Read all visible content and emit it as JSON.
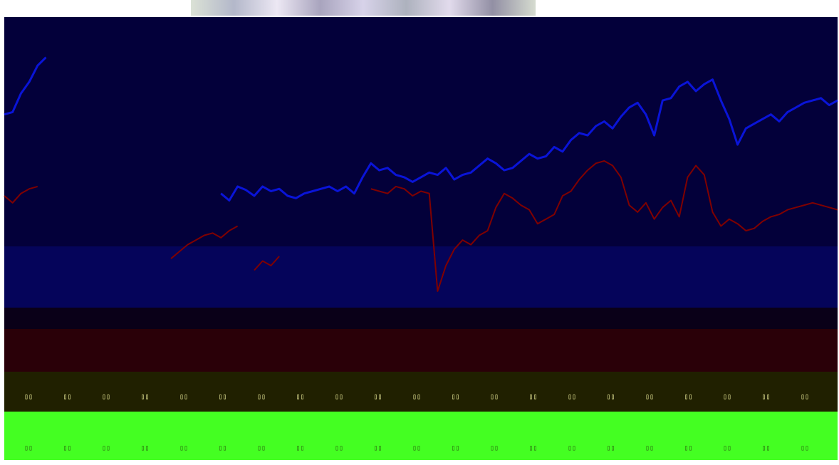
{
  "page": {
    "title": "",
    "colors": {
      "plot_bg": "#03003a",
      "band_blue": "#05045a",
      "band_dark": "#0a0018",
      "band_maroon": "#2a0008",
      "band_olive": "#202000",
      "band_green": "#44ff22",
      "tick_text_yellow": "#f4f4a0",
      "tick_text_green": "#2a6a10"
    }
  },
  "chart_data": {
    "type": "line",
    "title": "",
    "xlabel": "",
    "ylabel": "",
    "grid": false,
    "legend": "none",
    "xlim": [
      0,
      100
    ],
    "ylim": [
      -160,
      140
    ],
    "x": [
      0,
      1,
      2,
      3,
      4,
      5,
      6,
      7,
      8,
      9,
      10,
      11,
      12,
      13,
      14,
      15,
      16,
      17,
      18,
      19,
      20,
      21,
      22,
      23,
      24,
      25,
      26,
      27,
      28,
      29,
      30,
      31,
      32,
      33,
      34,
      35,
      36,
      37,
      38,
      39,
      40,
      41,
      42,
      43,
      44,
      45,
      46,
      47,
      48,
      49,
      50,
      51,
      52,
      53,
      54,
      55,
      56,
      57,
      58,
      59,
      60,
      61,
      62,
      63,
      64,
      65,
      66,
      67,
      68,
      69,
      70,
      71,
      72,
      73,
      74,
      75,
      76,
      77,
      78,
      79,
      80,
      81,
      82,
      83,
      84,
      85,
      86,
      87,
      88,
      89,
      90,
      91,
      92,
      93,
      94,
      95,
      96,
      97,
      98,
      99,
      100
    ],
    "series": [
      {
        "color": "#0a14d8",
        "values": [
          60,
          62,
          78,
          88,
          102,
          109,
          null,
          null,
          null,
          null,
          null,
          null,
          null,
          null,
          null,
          null,
          null,
          null,
          null,
          null,
          null,
          null,
          null,
          null,
          null,
          null,
          -8,
          -14,
          -2,
          -5,
          -10,
          -2,
          -6,
          -4,
          -10,
          -12,
          -8,
          -6,
          -4,
          -2,
          -6,
          -2,
          -8,
          6,
          18,
          12,
          14,
          8,
          6,
          2,
          6,
          10,
          8,
          14,
          4,
          8,
          10,
          16,
          22,
          18,
          12,
          14,
          20,
          26,
          22,
          24,
          32,
          28,
          38,
          44,
          42,
          50,
          54,
          48,
          58,
          66,
          70,
          60,
          42,
          72,
          74,
          84,
          88,
          80,
          86,
          90,
          72,
          56,
          34,
          48,
          52,
          56,
          60,
          54,
          62,
          66,
          70,
          72,
          74,
          68,
          72
        ]
      },
      {
        "color": "#800000",
        "values": [
          -10,
          -16,
          -8,
          -4,
          -2,
          null,
          null,
          null,
          null,
          null,
          null,
          null,
          null,
          null,
          null,
          null,
          null,
          null,
          null,
          null,
          -64,
          -58,
          -52,
          -48,
          -44,
          -42,
          -46,
          -40,
          -36,
          null,
          -74,
          -66,
          -70,
          -62,
          null,
          null,
          null,
          null,
          null,
          null,
          null,
          null,
          null,
          null,
          -4,
          -6,
          -8,
          -2,
          -4,
          -10,
          -6,
          -8,
          -92,
          -70,
          -56,
          -48,
          -52,
          -44,
          -40,
          -20,
          -8,
          -12,
          -18,
          -22,
          -34,
          -30,
          -26,
          -10,
          -6,
          4,
          12,
          18,
          20,
          16,
          6,
          -18,
          -24,
          -16,
          -30,
          -20,
          -14,
          -28,
          6,
          16,
          8,
          -24,
          -36,
          -30,
          -34,
          -40,
          -38,
          -32,
          -28,
          -26,
          -22,
          -20,
          -18,
          -16,
          -18,
          -20,
          -22
        ]
      }
    ]
  },
  "ticks": {
    "upper_row": [
      "▯▯",
      "▯▯",
      "▯▯",
      "▯▯",
      "▯▯",
      "▯▯",
      "▯▯",
      "▯▯",
      "▯▯",
      "▯▯",
      "▯▯",
      "▯▯",
      "▯▯",
      "▯▯",
      "▯▯",
      "▯▯",
      "▯▯",
      "▯▯",
      "▯▯",
      "▯▯",
      "▯▯"
    ],
    "lower_row": [
      "▯▯",
      "▯▯",
      "▯▯",
      "▯▯",
      "▯▯",
      "▯▯",
      "▯▯",
      "▯▯",
      "▯▯",
      "▯▯",
      "▯▯",
      "▯▯",
      "▯▯",
      "▯▯",
      "▯▯",
      "▯▯",
      "▯▯",
      "▯▯",
      "▯▯",
      "▯▯",
      "▯▯"
    ]
  }
}
